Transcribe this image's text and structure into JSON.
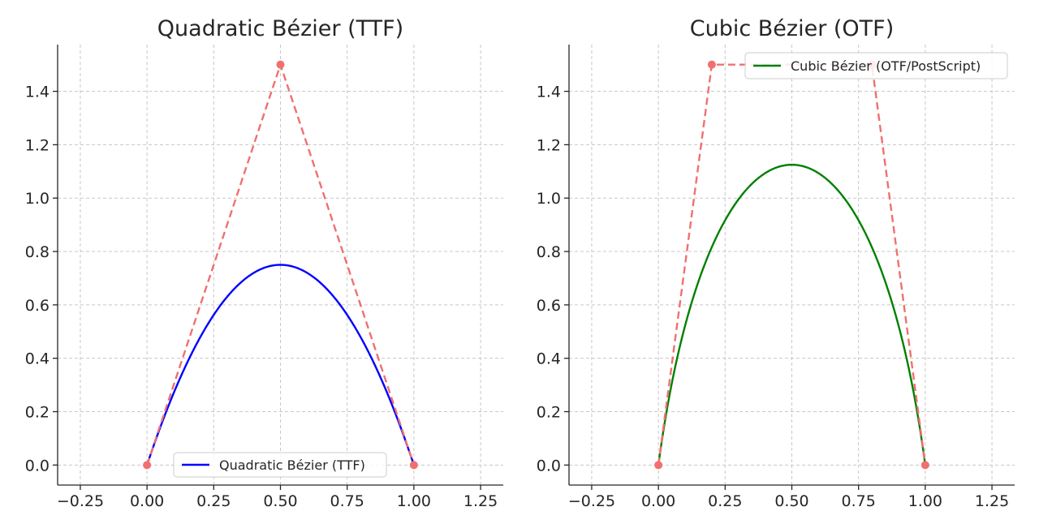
{
  "chart_data": [
    {
      "type": "line",
      "title": "Quadratic Bézier (TTF)",
      "xlabel": "",
      "ylabel": "",
      "xlim": [
        -0.335,
        1.335
      ],
      "ylim": [
        -0.075,
        1.575
      ],
      "xticks": [
        -0.25,
        0.0,
        0.25,
        0.5,
        0.75,
        1.0,
        1.25
      ],
      "xtick_labels": [
        "−0.25",
        "0.00",
        "0.25",
        "0.50",
        "0.75",
        "1.00",
        "1.25"
      ],
      "yticks": [
        0.0,
        0.2,
        0.4,
        0.6,
        0.8,
        1.0,
        1.2,
        1.4
      ],
      "ytick_labels": [
        "0.0",
        "0.2",
        "0.4",
        "0.6",
        "0.8",
        "1.0",
        "1.2",
        "1.4"
      ],
      "grid": true,
      "legend": {
        "placement": "lower-center",
        "entries": [
          "Quadratic Bézier (TTF)"
        ]
      },
      "series": [
        {
          "name": "Quadratic Bézier (TTF)",
          "kind": "quadratic-bezier",
          "color": "#0000ff",
          "style": "solid",
          "control_points": [
            [
              0.0,
              0.0
            ],
            [
              0.5,
              1.5
            ],
            [
              1.0,
              0.0
            ]
          ]
        },
        {
          "kind": "control-polygon",
          "color": "#f07070",
          "style": "dashed",
          "markers": true,
          "points": [
            [
              0.0,
              0.0
            ],
            [
              0.5,
              1.5
            ],
            [
              1.0,
              0.0
            ]
          ]
        }
      ]
    },
    {
      "type": "line",
      "title": "Cubic Bézier (OTF)",
      "xlabel": "",
      "ylabel": "",
      "xlim": [
        -0.335,
        1.335
      ],
      "ylim": [
        -0.075,
        1.575
      ],
      "xticks": [
        -0.25,
        0.0,
        0.25,
        0.5,
        0.75,
        1.0,
        1.25
      ],
      "xtick_labels": [
        "−0.25",
        "0.00",
        "0.25",
        "0.50",
        "0.75",
        "1.00",
        "1.25"
      ],
      "yticks": [
        0.0,
        0.2,
        0.4,
        0.6,
        0.8,
        1.0,
        1.2,
        1.4
      ],
      "ytick_labels": [
        "0.0",
        "0.2",
        "0.4",
        "0.6",
        "0.8",
        "1.0",
        "1.2",
        "1.4"
      ],
      "grid": true,
      "legend": {
        "placement": "upper-right",
        "entries": [
          "Cubic Bézier (OTF/PostScript)"
        ]
      },
      "series": [
        {
          "name": "Cubic Bézier (OTF/PostScript)",
          "kind": "cubic-bezier",
          "color": "#008000",
          "style": "solid",
          "control_points": [
            [
              0.0,
              0.0
            ],
            [
              0.2,
              1.5
            ],
            [
              0.8,
              1.5
            ],
            [
              1.0,
              0.0
            ]
          ]
        },
        {
          "kind": "control-polygon",
          "color": "#f07070",
          "style": "dashed",
          "markers": true,
          "points": [
            [
              0.0,
              0.0
            ],
            [
              0.2,
              1.5
            ],
            [
              0.8,
              1.5
            ],
            [
              1.0,
              0.0
            ]
          ]
        }
      ]
    }
  ]
}
